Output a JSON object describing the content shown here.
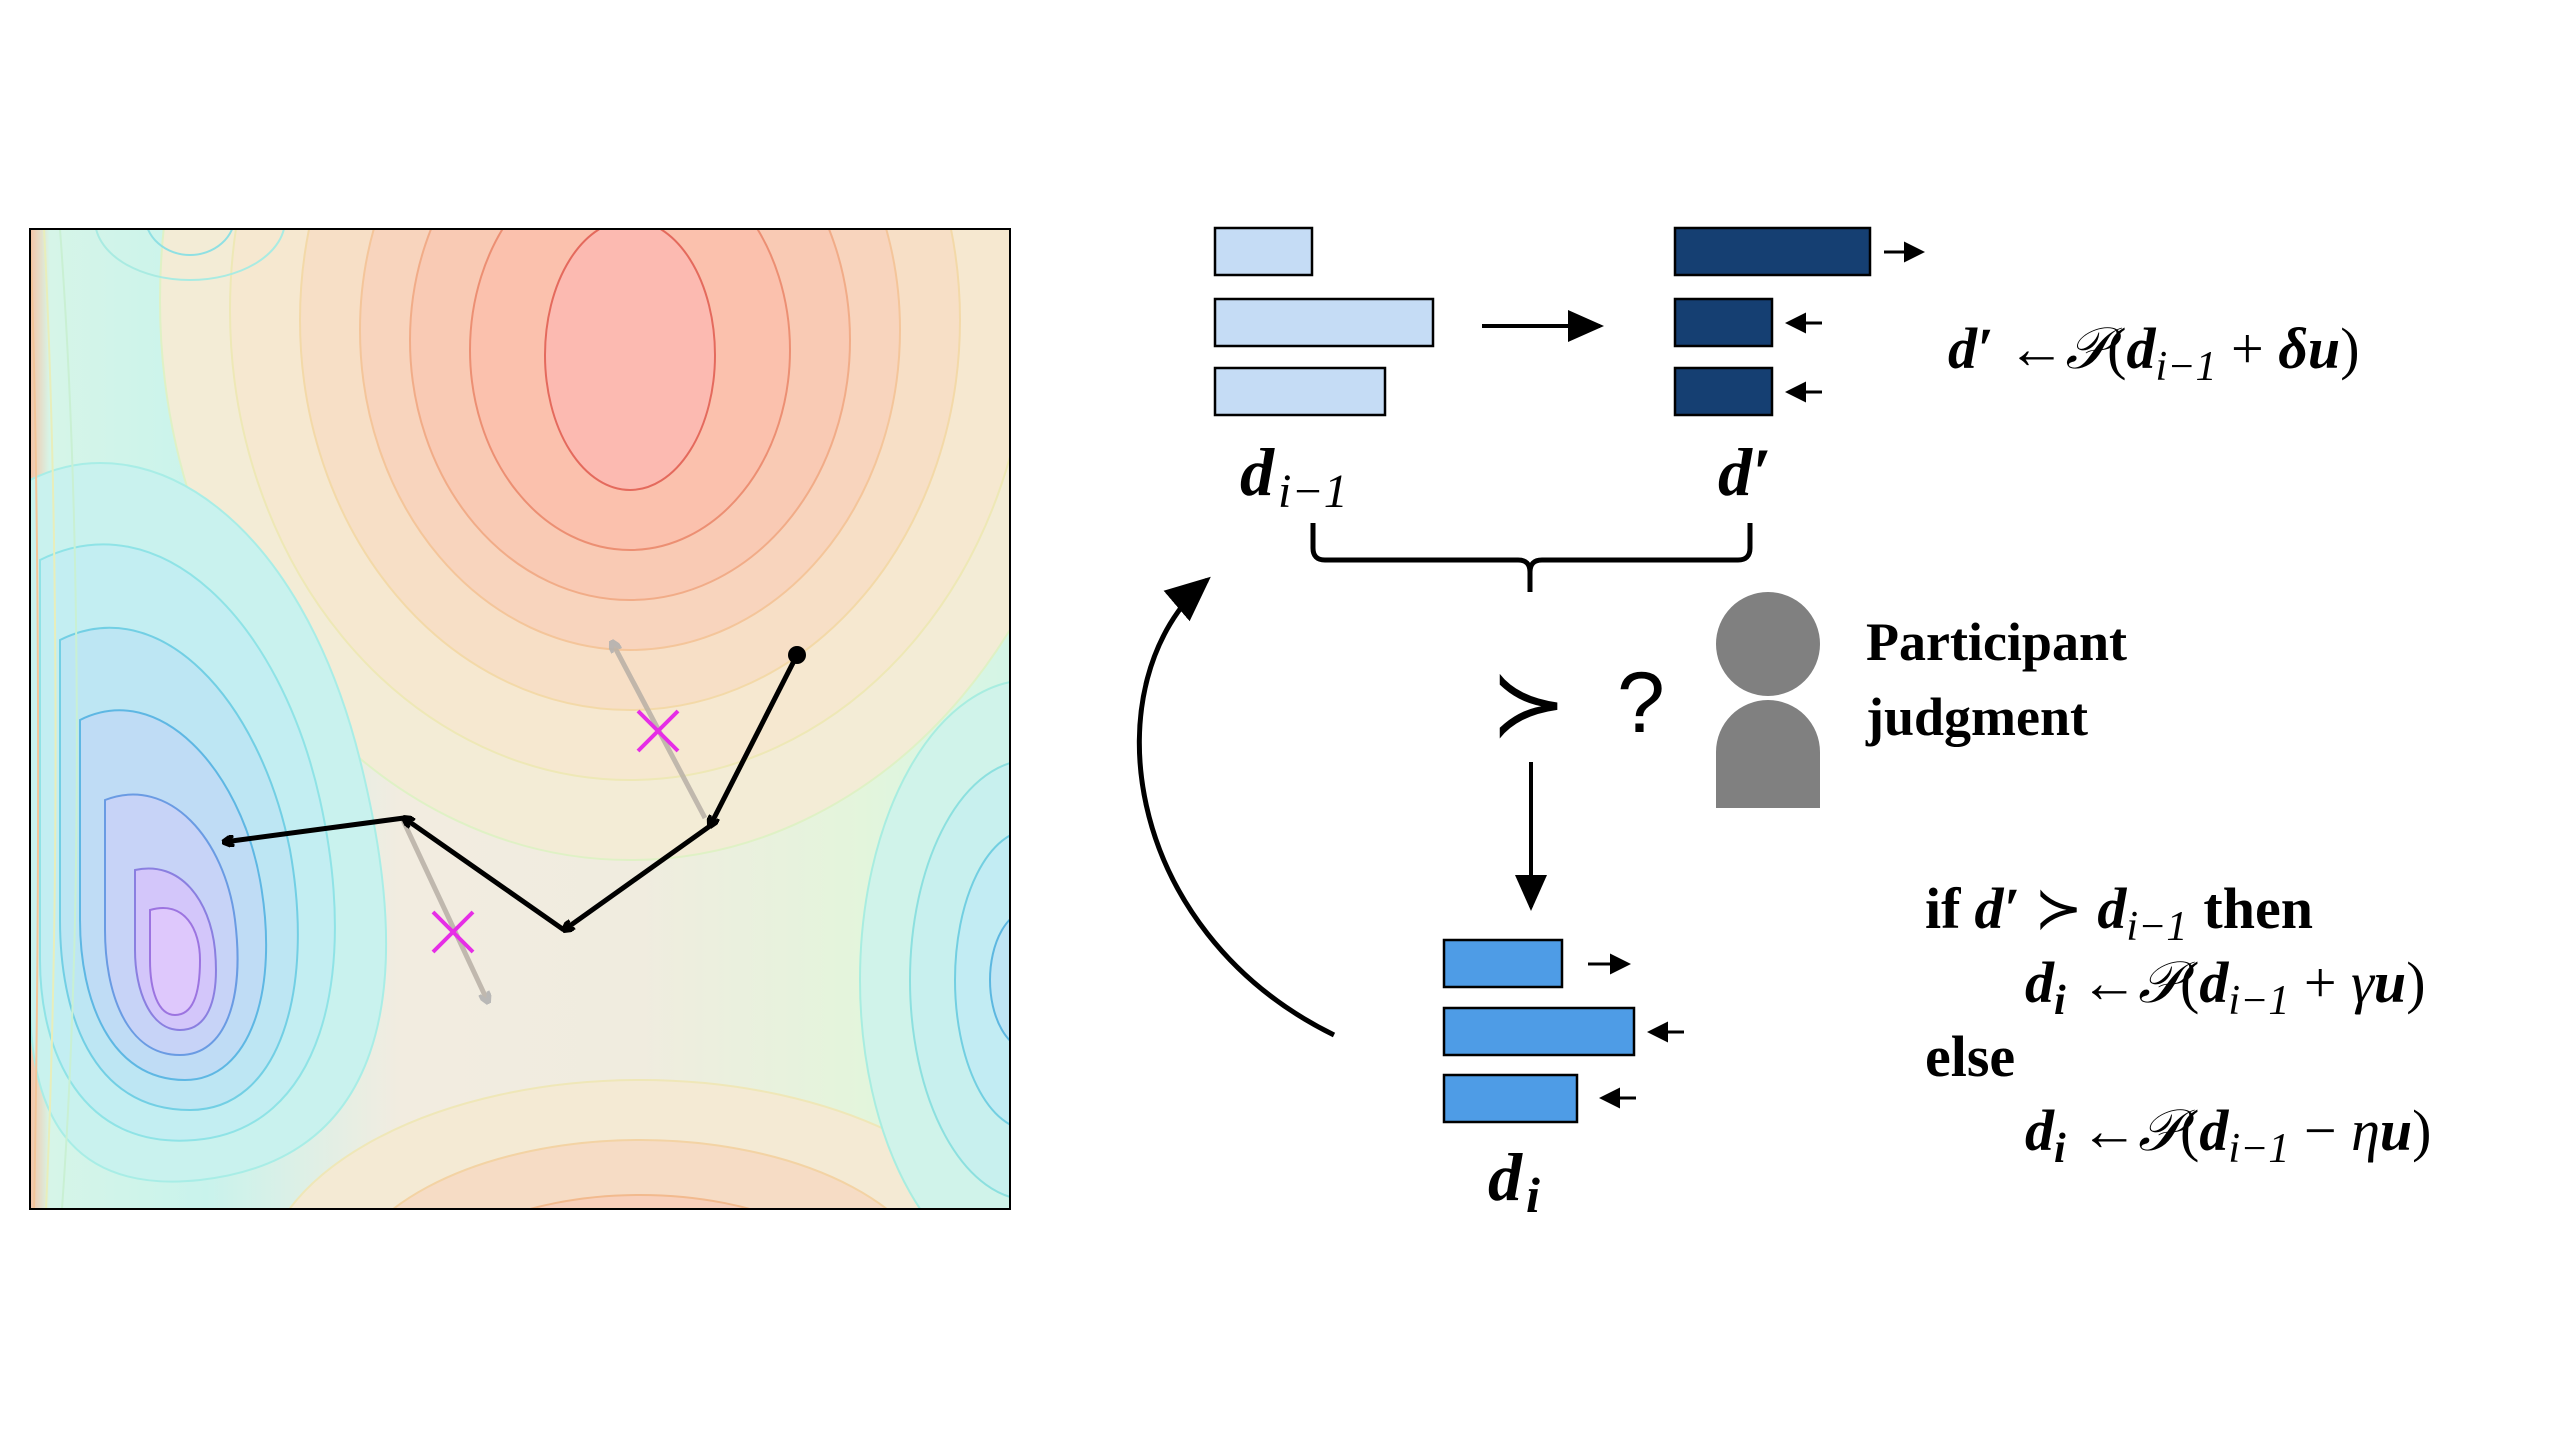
{
  "colors": {
    "light_blue": "#c5dcf5",
    "dark_blue": "#153f72",
    "mid_blue": "#4e9ce6",
    "person": "#808080",
    "cross": "#e62ee6"
  },
  "labels": {
    "d_prev_base": "d",
    "d_prev_sub": "i−1",
    "d_prime": "d′",
    "d_i_base": "d",
    "d_i_sub": "i",
    "prefers": "≻",
    "question": "?",
    "participant_line1": "Participant",
    "participant_line2": "judgment"
  },
  "formulas": {
    "proposal": {
      "lhs": "d′",
      "arrow": "←",
      "op": "𝒫",
      "open": "(",
      "d": "d",
      "sub": "i−1",
      "plus": " + ",
      "step": "δ",
      "u": "u",
      "close": ")"
    },
    "rule": {
      "if_kw": "if",
      "if_d": "d′",
      "if_rel": " ≻ ",
      "if_di": "d",
      "if_di_sub": "i−1",
      "then_kw": "then",
      "line2": {
        "d": "d",
        "sub": "i",
        "arrow": " ←",
        "op": "𝒫",
        "open": "(",
        "dd": "d",
        "dsub": "i−1",
        "sign": " + ",
        "step": "γ",
        "u": "u",
        "close": ")"
      },
      "else_kw": "else",
      "line4": {
        "d": "d",
        "sub": "i",
        "arrow": " ←",
        "op": "𝒫",
        "open": "(",
        "dd": "d",
        "dsub": "i−1",
        "sign": " − ",
        "step": "η",
        "u": "u",
        "close": ")"
      }
    }
  }
}
